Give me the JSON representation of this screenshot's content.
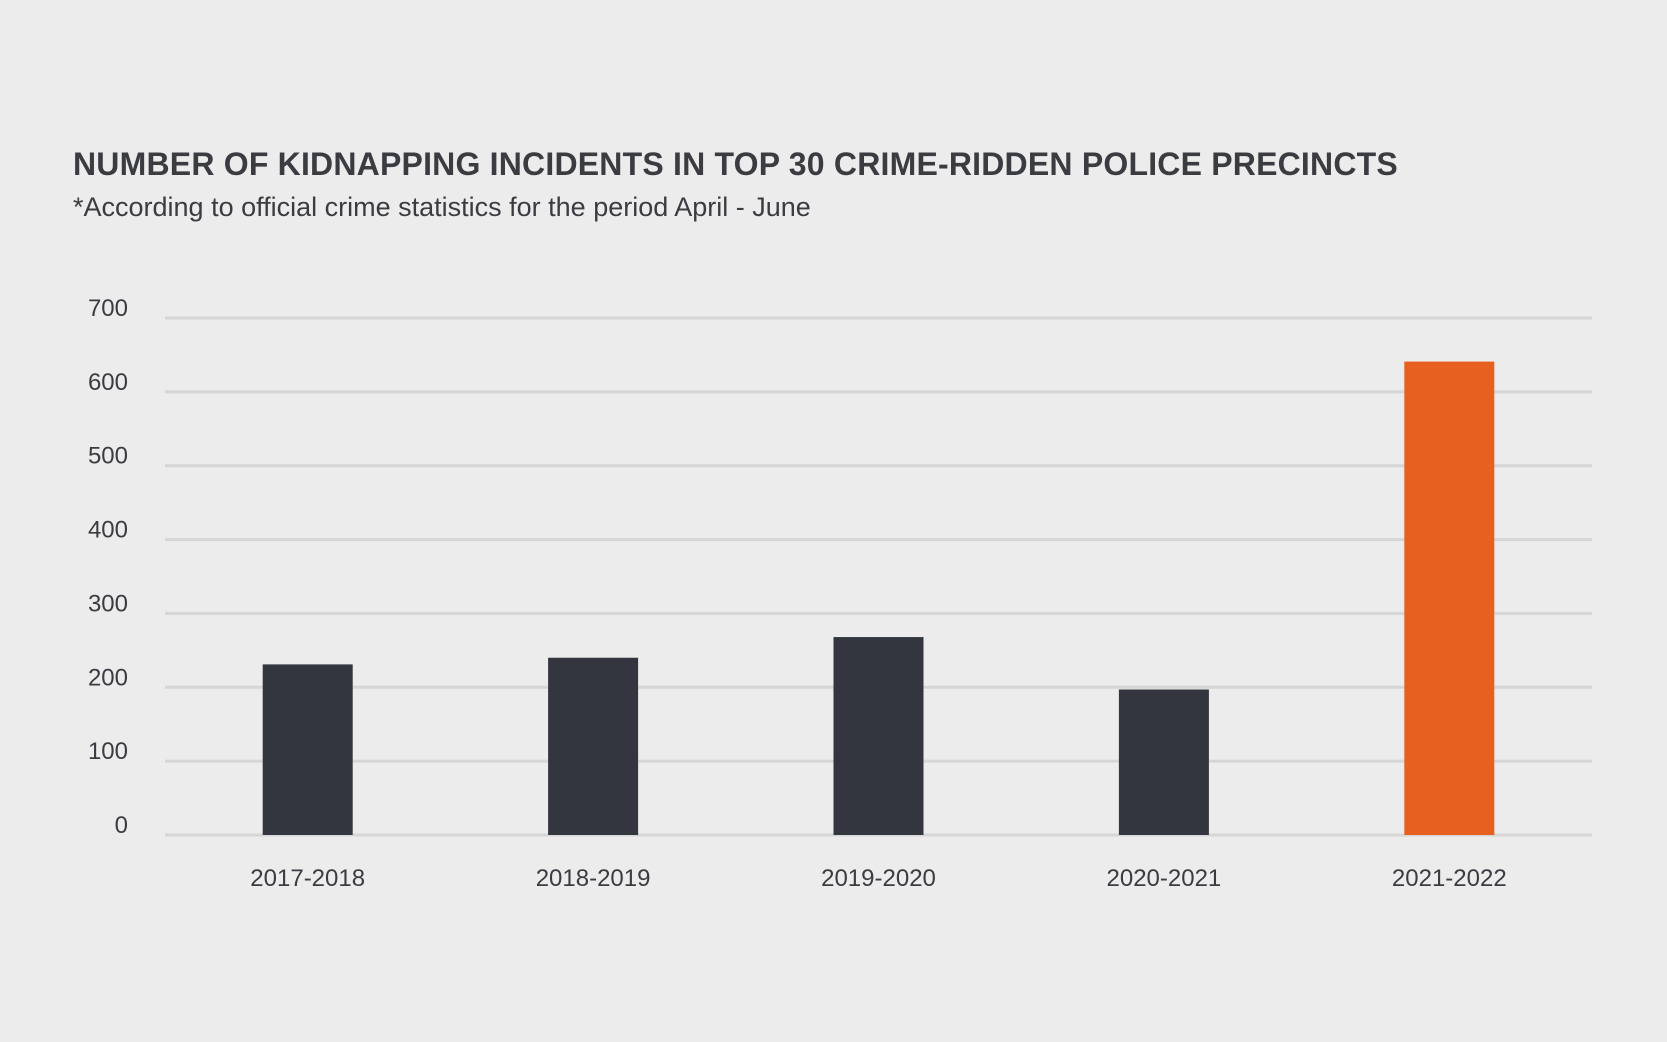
{
  "chart_data": {
    "type": "bar",
    "title": "NUMBER OF KIDNAPPING INCIDENTS IN TOP 30 CRIME-RIDDEN POLICE PRECINCTS",
    "subtitle": "*According to official crime statistics for the period April - June",
    "categories": [
      "2017-2018",
      "2018-2019",
      "2019-2020",
      "2020-2021",
      "2021-2022"
    ],
    "values": [
      231,
      240,
      268,
      197,
      641
    ],
    "ylim": [
      0,
      700
    ],
    "yticks": [
      0,
      100,
      200,
      300,
      400,
      500,
      600,
      700
    ],
    "grid": true,
    "colors": {
      "default_bar": "#33363f",
      "highlight_bar": "#e8601f",
      "grid": "#d6d6d6",
      "text": "#3a3c42",
      "background": "#ececec"
    },
    "highlight_category": "2021-2022"
  }
}
